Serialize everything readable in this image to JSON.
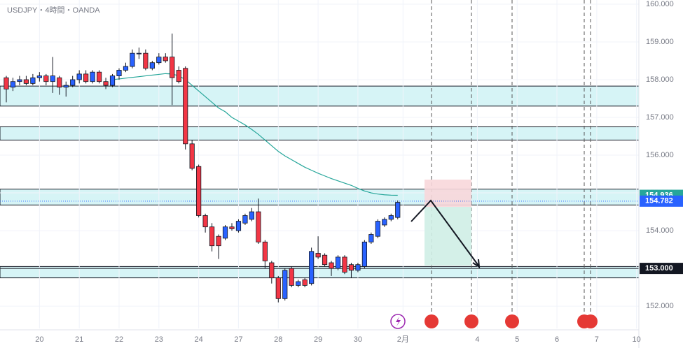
{
  "chart_data": {
    "type": "candlestick",
    "title": "USDJPY・4時間・OANDA",
    "x": [
      0,
      1,
      2,
      3,
      4,
      5,
      6,
      7,
      8,
      9,
      10,
      11,
      12,
      13,
      14,
      15,
      16,
      17,
      18,
      19,
      20,
      21,
      22,
      23,
      24,
      25,
      26,
      27,
      28,
      29,
      30,
      31,
      32,
      33,
      34,
      35,
      36,
      37,
      38,
      39,
      40,
      41,
      42,
      43,
      44,
      45,
      46,
      47,
      48,
      49,
      50,
      51,
      52,
      53,
      54,
      55,
      56,
      57,
      58,
      59
    ],
    "open": [
      158.05,
      157.8,
      157.95,
      158.0,
      157.9,
      158.05,
      158.1,
      157.95,
      158.05,
      157.8,
      157.85,
      158.0,
      158.15,
      157.95,
      158.2,
      157.95,
      157.85,
      158.1,
      158.25,
      158.35,
      158.7,
      158.7,
      158.3,
      158.45,
      158.6,
      158.6,
      158.25,
      158.3,
      156.3,
      155.7,
      154.4,
      154.1,
      153.85,
      153.8,
      154.1,
      154.0,
      154.2,
      154.3,
      154.5,
      153.7,
      153.15,
      152.75,
      152.2,
      153.0,
      152.55,
      152.7,
      152.6,
      153.4,
      153.35,
      153.15,
      153.0,
      153.3,
      153.1,
      152.95,
      153.05,
      153.7,
      153.85,
      154.15,
      154.3,
      154.35
    ],
    "high": [
      158.1,
      158.05,
      158.1,
      158.1,
      158.15,
      158.2,
      158.15,
      158.6,
      158.1,
      157.95,
      158.1,
      158.25,
      158.25,
      158.25,
      158.25,
      158.05,
      158.15,
      158.3,
      158.45,
      158.8,
      158.85,
      158.8,
      158.5,
      158.7,
      158.7,
      159.22,
      158.35,
      158.35,
      156.4,
      155.75,
      154.45,
      154.2,
      153.9,
      154.15,
      154.2,
      154.3,
      154.45,
      154.6,
      154.85,
      153.75,
      153.2,
      152.8,
      153.0,
      153.05,
      152.7,
      152.75,
      153.55,
      153.85,
      153.4,
      153.2,
      153.35,
      153.35,
      153.15,
      153.15,
      153.75,
      153.95,
      154.3,
      154.35,
      154.45,
      154.8
    ],
    "low": [
      157.4,
      157.7,
      157.85,
      157.85,
      157.85,
      157.95,
      157.85,
      157.65,
      157.6,
      157.55,
      157.8,
      157.9,
      157.9,
      157.9,
      157.9,
      157.75,
      157.8,
      158.0,
      158.2,
      158.3,
      158.55,
      158.25,
      158.25,
      158.4,
      158.45,
      157.33,
      157.9,
      156.15,
      155.6,
      154.35,
      153.95,
      153.45,
      153.25,
      153.75,
      154.0,
      153.95,
      154.15,
      154.25,
      153.65,
      153.0,
      152.6,
      152.1,
      152.15,
      152.5,
      152.5,
      152.5,
      152.55,
      153.25,
      153.05,
      152.8,
      152.95,
      152.85,
      152.75,
      152.9,
      153.0,
      153.65,
      153.8,
      154.1,
      154.25,
      154.3
    ],
    "close": [
      157.75,
      157.95,
      158.0,
      157.9,
      158.05,
      158.1,
      157.95,
      158.1,
      157.8,
      157.85,
      158.0,
      158.15,
      157.95,
      158.2,
      157.95,
      157.85,
      158.1,
      158.25,
      158.35,
      158.7,
      158.7,
      158.3,
      158.45,
      158.6,
      158.5,
      158.05,
      157.95,
      156.3,
      155.65,
      154.4,
      154.1,
      153.6,
      153.6,
      154.1,
      154.05,
      154.25,
      154.4,
      154.5,
      153.7,
      153.2,
      152.75,
      152.2,
      152.95,
      152.55,
      152.65,
      152.55,
      153.45,
      153.3,
      153.1,
      153.0,
      153.3,
      152.9,
      152.95,
      153.1,
      153.7,
      153.9,
      154.25,
      154.3,
      154.4,
      154.75
    ],
    "up_color": "#2962ff",
    "down_color": "#f23645",
    "ma": {
      "color": "#26a69a",
      "values": [
        null,
        null,
        null,
        null,
        null,
        null,
        null,
        null,
        null,
        null,
        null,
        null,
        null,
        null,
        null,
        null,
        158.0,
        158.02,
        158.04,
        158.06,
        158.08,
        158.1,
        158.12,
        158.14,
        158.16,
        158.15,
        158.1,
        158.0,
        157.85,
        157.7,
        157.55,
        157.4,
        157.25,
        157.15,
        157.0,
        156.9,
        156.8,
        156.68,
        156.55,
        156.4,
        156.25,
        156.1,
        155.98,
        155.88,
        155.78,
        155.68,
        155.6,
        155.52,
        155.45,
        155.38,
        155.32,
        155.26,
        155.2,
        155.12,
        155.05,
        155.0,
        154.97,
        154.95,
        154.94,
        154.936
      ]
    },
    "zones": [
      {
        "top": 157.83,
        "bottom": 157.3
      },
      {
        "top": 156.75,
        "bottom": 156.4
      },
      {
        "top": 155.1,
        "bottom": 154.68
      },
      {
        "top": 153.05,
        "bottom": 152.75
      }
    ],
    "zone_color": "#d6f4f6",
    "price_labels": [
      {
        "value": 154.936,
        "label": "154.936",
        "color": "#26a69a"
      },
      {
        "value": 154.782,
        "label": "154.782",
        "color": "#2962ff",
        "line": "dotted"
      },
      {
        "value": 153.0,
        "label": "153.000",
        "color": "#131722",
        "line": "solid"
      }
    ],
    "xlim": [
      -0.95,
      95.35
    ],
    "ylim": [
      151.41,
      160.11
    ],
    "xticks": [
      {
        "value": 5,
        "label": "20"
      },
      {
        "value": 11,
        "label": "21"
      },
      {
        "value": 17,
        "label": "22"
      },
      {
        "value": 23,
        "label": "23"
      },
      {
        "value": 29,
        "label": "24"
      },
      {
        "value": 35,
        "label": "27"
      },
      {
        "value": 41,
        "label": "28"
      },
      {
        "value": 47,
        "label": "29"
      },
      {
        "value": 53,
        "label": "30"
      },
      {
        "value": 59.8,
        "label": "2月"
      },
      {
        "value": 71,
        "label": "4"
      },
      {
        "value": 77,
        "label": "5"
      },
      {
        "value": 83,
        "label": "6"
      },
      {
        "value": 89,
        "label": "7"
      },
      {
        "value": 95,
        "label": "10"
      }
    ],
    "yticks": [
      {
        "value": 152,
        "label": "152.000"
      },
      {
        "value": 153,
        "label": "153.000"
      },
      {
        "value": 154,
        "label": "154.000"
      },
      {
        "value": 155,
        "label": "155.000"
      },
      {
        "value": 156,
        "label": "156.000"
      },
      {
        "value": 157,
        "label": "157.000"
      },
      {
        "value": 158,
        "label": "158.000"
      },
      {
        "value": 159,
        "label": "159.000"
      },
      {
        "value": 160,
        "label": "160.000"
      }
    ]
  }
}
